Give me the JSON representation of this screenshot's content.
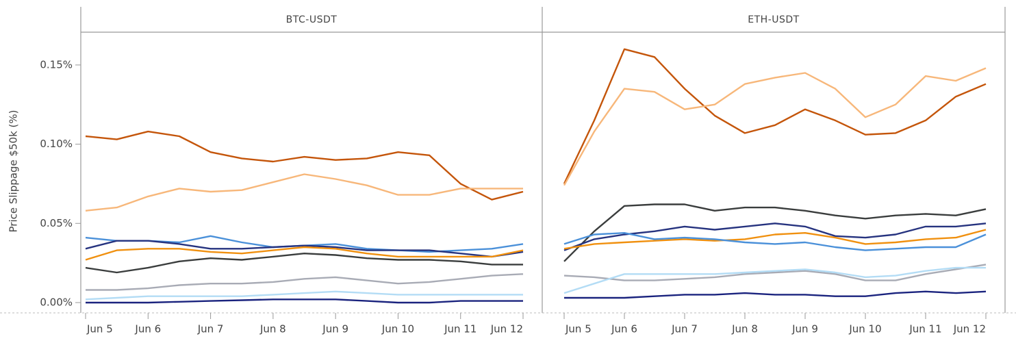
{
  "chart_data": [
    {
      "type": "line",
      "title": "BTC-USDT",
      "y_label": "Price Slippage $50k (%)",
      "categories": [
        "Jun 5",
        null,
        "Jun 6",
        null,
        "Jun 7",
        null,
        "Jun 8",
        null,
        "Jun 9",
        null,
        "Jun 10",
        null,
        "Jun 11",
        null,
        "Jun 12"
      ],
      "ylim": [
        -0.0065,
        0.1707
      ],
      "yticks": [
        {
          "value": 0,
          "label": "0.00%"
        },
        {
          "value": 0.05,
          "label": "0.05%"
        },
        {
          "value": 0.1,
          "label": "0.10%"
        },
        {
          "value": 0.15,
          "label": "0.15%"
        }
      ],
      "series": [
        {
          "color": "#c4550a",
          "values": [
            0.105,
            0.103,
            0.108,
            0.105,
            0.095,
            0.091,
            0.089,
            0.092,
            0.09,
            0.091,
            0.095,
            0.093,
            0.075,
            0.065,
            0.07
          ]
        },
        {
          "color": "#f7b77a",
          "values": [
            0.058,
            0.06,
            0.067,
            0.072,
            0.07,
            0.071,
            0.076,
            0.081,
            0.078,
            0.074,
            0.068,
            0.068,
            0.072,
            0.072,
            0.072
          ]
        },
        {
          "color": "#4a90d9",
          "values": [
            0.041,
            0.039,
            0.039,
            0.038,
            0.042,
            0.038,
            0.035,
            0.036,
            0.037,
            0.034,
            0.033,
            0.032,
            0.033,
            0.034,
            0.037
          ]
        },
        {
          "color": "#26337f",
          "values": [
            0.034,
            0.039,
            0.039,
            0.037,
            0.034,
            0.034,
            0.035,
            0.036,
            0.035,
            0.033,
            0.033,
            0.033,
            0.031,
            0.029,
            0.032
          ]
        },
        {
          "color": "#f0900f",
          "values": [
            0.027,
            0.033,
            0.034,
            0.034,
            0.032,
            0.031,
            0.033,
            0.035,
            0.034,
            0.031,
            0.029,
            0.029,
            0.029,
            0.029,
            0.033
          ]
        },
        {
          "color": "#3a3d3d",
          "values": [
            0.022,
            0.019,
            0.022,
            0.026,
            0.028,
            0.027,
            0.029,
            0.031,
            0.03,
            0.028,
            0.027,
            0.027,
            0.026,
            0.024,
            0.024
          ]
        },
        {
          "color": "#a8abb5",
          "values": [
            0.008,
            0.008,
            0.009,
            0.011,
            0.012,
            0.012,
            0.013,
            0.015,
            0.016,
            0.014,
            0.012,
            0.013,
            0.015,
            0.017,
            0.018
          ]
        },
        {
          "color": "#b3dcf5",
          "values": [
            0.002,
            0.003,
            0.004,
            0.004,
            0.004,
            0.004,
            0.005,
            0.006,
            0.007,
            0.006,
            0.005,
            0.005,
            0.005,
            0.005,
            0.005
          ]
        },
        {
          "color": "#1a237e",
          "values": [
            0,
            0,
            0,
            0.0005,
            0.001,
            0.0015,
            0.002,
            0.002,
            0.002,
            0.001,
            0,
            0,
            0.001,
            0.001,
            0.001
          ]
        }
      ]
    },
    {
      "type": "line",
      "title": "ETH-USDT",
      "categories": [
        "Jun 5",
        null,
        "Jun 6",
        null,
        "Jun 7",
        null,
        "Jun 8",
        null,
        "Jun 9",
        null,
        "Jun 10",
        null,
        "Jun 11",
        null,
        "Jun 12"
      ],
      "ylim": [
        -0.0065,
        0.1707
      ],
      "series": [
        {
          "color": "#c4550a",
          "values": [
            0.075,
            0.115,
            0.16,
            0.155,
            0.135,
            0.118,
            0.107,
            0.112,
            0.122,
            0.115,
            0.106,
            0.107,
            0.115,
            0.13,
            0.138
          ]
        },
        {
          "color": "#f7b77a",
          "values": [
            0.074,
            0.108,
            0.135,
            0.133,
            0.122,
            0.125,
            0.138,
            0.142,
            0.145,
            0.135,
            0.117,
            0.125,
            0.143,
            0.14,
            0.148
          ]
        },
        {
          "color": "#3a3d3d",
          "values": [
            0.026,
            0.045,
            0.061,
            0.062,
            0.062,
            0.058,
            0.06,
            0.06,
            0.058,
            0.055,
            0.053,
            0.055,
            0.056,
            0.055,
            0.059
          ]
        },
        {
          "color": "#26337f",
          "values": [
            0.033,
            0.04,
            0.043,
            0.045,
            0.048,
            0.046,
            0.048,
            0.05,
            0.048,
            0.042,
            0.041,
            0.043,
            0.048,
            0.048,
            0.05
          ]
        },
        {
          "color": "#f0900f",
          "values": [
            0.034,
            0.037,
            0.038,
            0.039,
            0.04,
            0.039,
            0.04,
            0.043,
            0.044,
            0.041,
            0.037,
            0.038,
            0.04,
            0.041,
            0.046
          ]
        },
        {
          "color": "#4a90d9",
          "values": [
            0.037,
            0.043,
            0.044,
            0.04,
            0.041,
            0.04,
            0.038,
            0.037,
            0.038,
            0.035,
            0.033,
            0.034,
            0.035,
            0.035,
            0.043
          ]
        },
        {
          "color": "#a8abb5",
          "values": [
            0.017,
            0.016,
            0.014,
            0.014,
            0.015,
            0.016,
            0.018,
            0.019,
            0.02,
            0.018,
            0.014,
            0.014,
            0.018,
            0.021,
            0.024
          ]
        },
        {
          "color": "#b3dcf5",
          "values": [
            0.006,
            0.012,
            0.018,
            0.018,
            0.018,
            0.018,
            0.019,
            0.02,
            0.021,
            0.019,
            0.016,
            0.017,
            0.02,
            0.022,
            0.022
          ]
        },
        {
          "color": "#1a237e",
          "values": [
            0.003,
            0.003,
            0.003,
            0.004,
            0.005,
            0.005,
            0.006,
            0.005,
            0.005,
            0.004,
            0.004,
            0.006,
            0.007,
            0.006,
            0.007
          ]
        }
      ]
    }
  ]
}
